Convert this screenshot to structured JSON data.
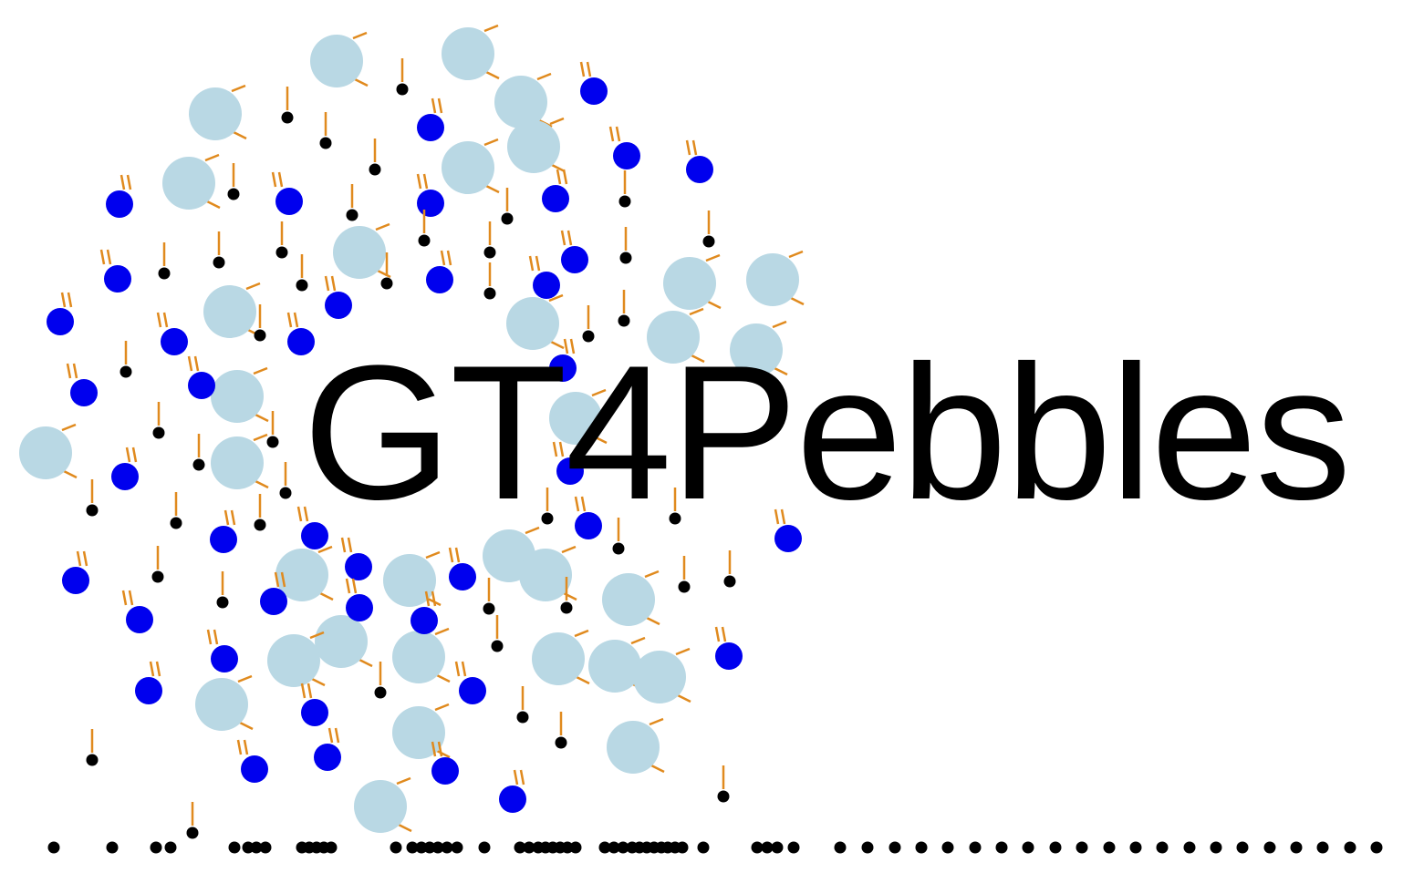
{
  "title": "GT4Pebbles",
  "colors": {
    "background": "#ffffff",
    "large_pebble": "#b9d8e4",
    "medium_pebble": "#0000ee",
    "small_pebble": "#000000",
    "trail": "#e08a1e",
    "text": "#000000"
  },
  "legend_note": ""
}
